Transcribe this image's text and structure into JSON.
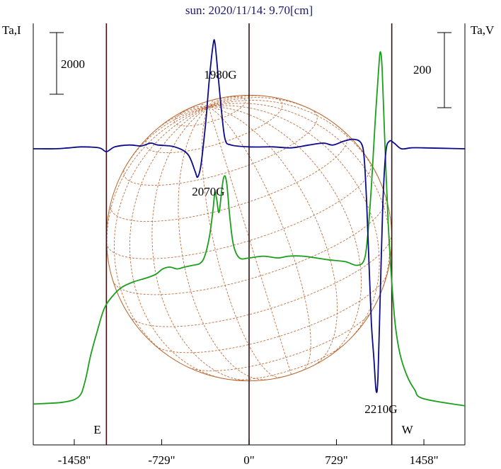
{
  "chart_data": {
    "type": "line",
    "title": "sun: 2020/11/14: 9.70[cm]",
    "left_axis_label": "Ta,I",
    "right_axis_label": "Ta,V",
    "left_scale_bar": "2000",
    "right_scale_bar": "200",
    "x_unit": "arcsec",
    "xlim": [
      -1800,
      1800
    ],
    "x_ticks": [
      {
        "value": -1458,
        "label": "-1458\""
      },
      {
        "value": -729,
        "label": "-729\""
      },
      {
        "value": 0,
        "label": "0\""
      },
      {
        "value": 729,
        "label": "729\""
      },
      {
        "value": 1458,
        "label": "1458\""
      }
    ],
    "vertical_markers": [
      {
        "x": -1190,
        "label": "E"
      },
      {
        "x": 0,
        "label": ""
      },
      {
        "x": 1190,
        "label": "W"
      }
    ],
    "solar_disk_radius_arcsec": 1190,
    "annotations": [
      {
        "text": "1980G",
        "x": -240,
        "series": "V"
      },
      {
        "text": "2070G",
        "x": -340,
        "series": "I"
      },
      {
        "text": "2210G",
        "x": 1100,
        "series": "V"
      }
    ],
    "series": [
      {
        "key": "I",
        "color": "#1aa01a",
        "y_rel": [
          [
            -1800,
            0.03
          ],
          [
            -1550,
            0.04
          ],
          [
            -1420,
            0.07
          ],
          [
            -1370,
            0.15
          ],
          [
            -1320,
            0.3
          ],
          [
            -1270,
            0.42
          ],
          [
            -1210,
            0.55
          ],
          [
            -1140,
            0.62
          ],
          [
            -1060,
            0.67
          ],
          [
            -960,
            0.7
          ],
          [
            -860,
            0.72
          ],
          [
            -780,
            0.74
          ],
          [
            -720,
            0.77
          ],
          [
            -660,
            0.78
          ],
          [
            -600,
            0.77
          ],
          [
            -540,
            0.78
          ],
          [
            -470,
            0.79
          ],
          [
            -410,
            0.8
          ],
          [
            -370,
            0.84
          ],
          [
            -330,
            0.95
          ],
          [
            -300,
            1.1
          ],
          [
            -285,
            1.19
          ],
          [
            -270,
            1.15
          ],
          [
            -250,
            1.08
          ],
          [
            -225,
            1.22
          ],
          [
            -205,
            1.28
          ],
          [
            -185,
            1.23
          ],
          [
            -160,
            1.05
          ],
          [
            -130,
            0.9
          ],
          [
            -80,
            0.83
          ],
          [
            0,
            0.83
          ],
          [
            120,
            0.84
          ],
          [
            240,
            0.83
          ],
          [
            330,
            0.84
          ],
          [
            450,
            0.84
          ],
          [
            560,
            0.83
          ],
          [
            660,
            0.82
          ],
          [
            800,
            0.81
          ],
          [
            900,
            0.79
          ],
          [
            960,
            0.82
          ],
          [
            990,
            0.96
          ],
          [
            1020,
            1.22
          ],
          [
            1050,
            1.56
          ],
          [
            1080,
            1.86
          ],
          [
            1095,
            1.96
          ],
          [
            1110,
            1.86
          ],
          [
            1130,
            1.5
          ],
          [
            1160,
            1.02
          ],
          [
            1190,
            0.7
          ],
          [
            1220,
            0.46
          ],
          [
            1260,
            0.3
          ],
          [
            1320,
            0.18
          ],
          [
            1380,
            0.11
          ],
          [
            1450,
            0.06
          ],
          [
            1800,
            0.02
          ]
        ]
      },
      {
        "key": "V",
        "color": "#0a0a8a",
        "y_rel": [
          [
            -1800,
            0
          ],
          [
            -1620,
            0
          ],
          [
            -1500,
            0.005
          ],
          [
            -1400,
            0.01
          ],
          [
            -1250,
            0.005
          ],
          [
            -1190,
            -0.015
          ],
          [
            -1120,
            0.01
          ],
          [
            -1000,
            0.02
          ],
          [
            -900,
            0.015
          ],
          [
            -820,
            0.03
          ],
          [
            -760,
            0.02
          ],
          [
            -620,
            0.01
          ],
          [
            -510,
            -0.03
          ],
          [
            -450,
            -0.12
          ],
          [
            -430,
            -0.15
          ],
          [
            -405,
            -0.1
          ],
          [
            -385,
            0
          ],
          [
            -360,
            0.15
          ],
          [
            -330,
            0.38
          ],
          [
            -300,
            0.55
          ],
          [
            -285,
            0.56
          ],
          [
            -260,
            0.4
          ],
          [
            -230,
            0.2
          ],
          [
            -200,
            0.05
          ],
          [
            -150,
            0.02
          ],
          [
            0,
            0.01
          ],
          [
            200,
            0.01
          ],
          [
            350,
            0.005
          ],
          [
            500,
            0.02
          ],
          [
            620,
            0.03
          ],
          [
            700,
            0.02
          ],
          [
            790,
            0.04
          ],
          [
            870,
            0.05
          ],
          [
            935,
            0.03
          ],
          [
            960,
            -0.05
          ],
          [
            980,
            -0.28
          ],
          [
            1000,
            -0.6
          ],
          [
            1020,
            -0.92
          ],
          [
            1040,
            -1.1
          ],
          [
            1060,
            -1.28
          ],
          [
            1075,
            -1.2
          ],
          [
            1095,
            -0.75
          ],
          [
            1115,
            -0.3
          ],
          [
            1140,
            -0.02
          ],
          [
            1170,
            0.04
          ],
          [
            1210,
            0.03
          ],
          [
            1270,
            0.0
          ],
          [
            1350,
            0.005
          ],
          [
            1450,
            0.005
          ],
          [
            1800,
            0
          ]
        ]
      }
    ]
  }
}
